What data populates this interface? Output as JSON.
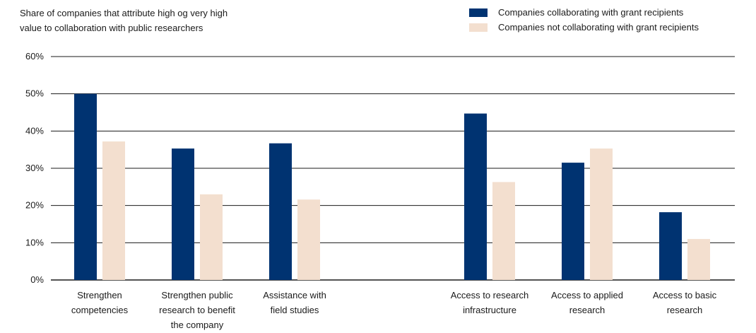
{
  "title_lines": [
    "Share of companies that attribute high og very high",
    "value to collaboration with public researchers"
  ],
  "colors": {
    "series1": "#003371",
    "series2": "#f3dfcf",
    "grid": "#1a1a1a"
  },
  "chart_data": {
    "type": "bar",
    "title": "Share of companies that attribute high og very high value to collaboration with public researchers",
    "categories": [
      "Strengthen competencies",
      "Strengthen public research to benefit the company",
      "Assistance with field studies",
      "Access to research infrastructure",
      "Access to applied research",
      "Access to basic research"
    ],
    "category_label_lines": [
      [
        "Strengthen",
        "competencies"
      ],
      [
        "Strengthen public",
        "research to benefit",
        "the company"
      ],
      [
        "Assistance with",
        "field studies"
      ],
      [
        "Access to research",
        "infrastructure"
      ],
      [
        "Access to applied",
        "research"
      ],
      [
        "Access to basic",
        "research"
      ]
    ],
    "series": [
      {
        "name": "Companies collaborating with grant recipients",
        "values": [
          50.0,
          35.3,
          36.7,
          44.7,
          31.5,
          18.2
        ]
      },
      {
        "name": "Companies not collaborating with grant recipients",
        "values": [
          37.2,
          23.0,
          21.6,
          26.3,
          35.3,
          11.0
        ]
      }
    ],
    "ylim": [
      0,
      60
    ],
    "y_ticks": [
      0,
      10,
      20,
      30,
      40,
      50,
      60
    ],
    "y_tick_labels": [
      "0%",
      "10%",
      "20%",
      "30%",
      "40%",
      "50%",
      "60%"
    ],
    "xlabel": "",
    "ylabel": "",
    "grid": true,
    "legend_position": "top-right"
  }
}
